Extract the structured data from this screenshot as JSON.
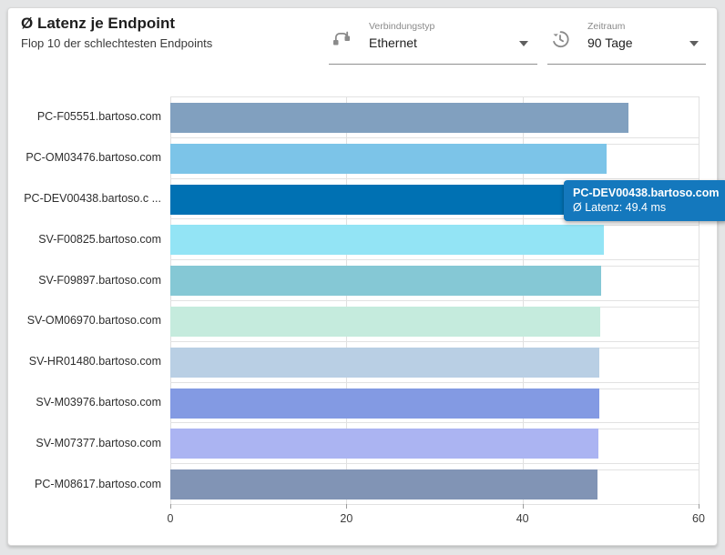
{
  "header": {
    "title": "Ø Latenz je Endpoint",
    "subtitle": "Flop 10 der schlechtesten Endpoints"
  },
  "filters": {
    "connection_type": {
      "label": "Verbindungstyp",
      "value": "Ethernet",
      "icon": "cable-icon"
    },
    "time_range": {
      "label": "Zeitraum",
      "value": "90 Tage",
      "icon": "history-icon"
    }
  },
  "tooltip": {
    "title": "PC-DEV00438.bartoso.com",
    "value_line": "Ø Latenz: 49.4 ms",
    "bg_color": "#1478bd"
  },
  "chart_data": {
    "type": "bar",
    "orientation": "horizontal",
    "title": "Ø Latenz je Endpoint",
    "subtitle": "Flop 10 der schlechtesten Endpoints",
    "xlabel": "",
    "ylabel": "",
    "unit": "ms",
    "xlim": [
      0,
      60
    ],
    "x_ticks": [
      "0",
      "20",
      "40",
      "60"
    ],
    "grid": "vertical",
    "categories": [
      "PC-F05551.bartoso.com",
      "PC-OM03476.bartoso.com",
      "PC-DEV00438.bartoso.com",
      "SV-F00825.bartoso.com",
      "SV-F09897.bartoso.com",
      "SV-OM06970.bartoso.com",
      "SV-HR01480.bartoso.com",
      "SV-M03976.bartoso.com",
      "SV-M07377.bartoso.com",
      "PC-M08617.bartoso.com"
    ],
    "display_labels": [
      "PC-F05551.bartoso.com",
      "PC-OM03476.bartoso.com",
      "PC-DEV00438.bartoso.c ...",
      "SV-F00825.bartoso.com",
      "SV-F09897.bartoso.com",
      "SV-OM06970.bartoso.com",
      "SV-HR01480.bartoso.com",
      "SV-M03976.bartoso.com",
      "SV-M07377.bartoso.com",
      "PC-M08617.bartoso.com"
    ],
    "values": [
      52.0,
      49.6,
      49.4,
      49.2,
      48.9,
      48.8,
      48.7,
      48.7,
      48.6,
      48.5
    ],
    "bar_colors": [
      "#81a0bf",
      "#7cc4e8",
      "#0071b3",
      "#93e4f5",
      "#85c8d5",
      "#c5ebdd",
      "#b9cfe4",
      "#839ae3",
      "#abb4f2",
      "#8194b5"
    ],
    "highlighted_index": 2,
    "highlighted_value_label": "Ø Latenz: 49.4 ms"
  }
}
